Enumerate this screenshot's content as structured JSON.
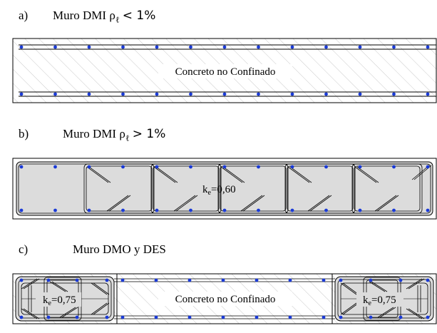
{
  "panel_a": {
    "letter": "a)",
    "title_prefix": "Muro DMI ρ",
    "title_sub": "ℓ",
    "title_op": "< 1%",
    "label": "Concreto no Confinado"
  },
  "panel_b": {
    "letter": "b)",
    "title_prefix": "Muro DMI ρ",
    "title_sub": "ℓ",
    "title_op": "> 1%",
    "label_k": "k",
    "label_sub": "e",
    "label_value": "=0,60"
  },
  "panel_c": {
    "letter": "c)",
    "title": "Muro DMO y DES",
    "label_center": "Concreto no Confinado",
    "label_k": "k",
    "label_sub": "e",
    "label_value": "=0,75"
  },
  "colors": {
    "rebar": "#1a3ad6",
    "confined_fill": "#dcdcdc",
    "hatch": "#b8b8b8",
    "outline": "#000000"
  }
}
